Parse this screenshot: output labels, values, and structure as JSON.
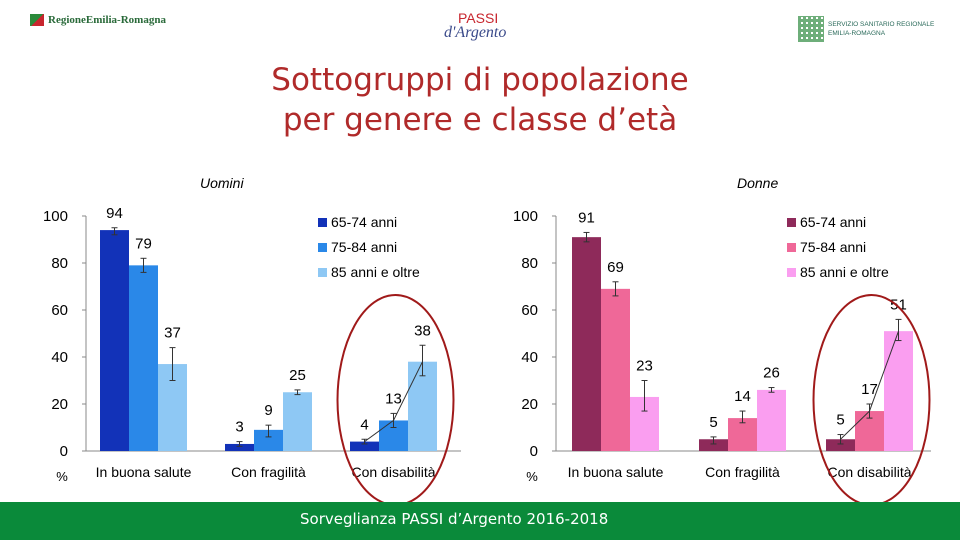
{
  "header": {
    "left_logo": "RegioneEmilia-Romagna",
    "center_logo_line1": "PASSI",
    "center_logo_line2": "d'Argento",
    "right_logo_line1": "SERVIZIO SANITARIO REGIONALE",
    "right_logo_line2": "EMILIA-ROMAGNA"
  },
  "title_line1": "Sottogruppi di popolazione",
  "title_line2": "per genere e classe d’età",
  "footer": "Sorveglianza PASSI d’Argento 2016-2018",
  "chart_data": [
    {
      "type": "bar",
      "title": "Uomini",
      "categories": [
        "In buona salute",
        "Con fragilità",
        "Con disabilità"
      ],
      "series": [
        {
          "name": "65-74 anni",
          "color": "#1232b8",
          "values": [
            94,
            3,
            4
          ],
          "ci": [
            [
              92,
              95
            ],
            [
              2,
              4
            ],
            [
              3,
              5
            ]
          ]
        },
        {
          "name": "75-84 anni",
          "color": "#2a88e8",
          "values": [
            79,
            9,
            13
          ],
          "ci": [
            [
              76,
              82
            ],
            [
              6,
              11
            ],
            [
              10,
              16
            ]
          ]
        },
        {
          "name": "85 anni e oltre",
          "color": "#8ec8f4",
          "values": [
            37,
            25,
            38
          ],
          "ci": [
            [
              30,
              44
            ],
            [
              24,
              26
            ],
            [
              32,
              45
            ]
          ]
        }
      ],
      "ylim": [
        0,
        100
      ],
      "yticks": [
        0,
        20,
        40,
        60,
        80,
        100
      ],
      "ylabel": "%",
      "legend": "top-right",
      "grid": false
    },
    {
      "type": "bar",
      "title": "Donne",
      "categories": [
        "In buona salute",
        "Con fragilità",
        "Con disabilità"
      ],
      "series": [
        {
          "name": "65-74 anni",
          "color": "#8e2a5a",
          "values": [
            91,
            5,
            5
          ],
          "ci": [
            [
              89,
              93
            ],
            [
              3,
              6
            ],
            [
              3,
              7
            ]
          ]
        },
        {
          "name": "75-84 anni",
          "color": "#ef6898",
          "values": [
            69,
            14,
            17
          ],
          "ci": [
            [
              66,
              72
            ],
            [
              12,
              17
            ],
            [
              14,
              20
            ]
          ]
        },
        {
          "name": "85 anni e oltre",
          "color": "#fa9ef0",
          "values": [
            23,
            26,
            51
          ],
          "ci": [
            [
              17,
              30
            ],
            [
              25,
              27
            ],
            [
              47,
              56
            ]
          ]
        }
      ],
      "ylim": [
        0,
        100
      ],
      "yticks": [
        0,
        20,
        40,
        60,
        80,
        100
      ],
      "ylabel": "%",
      "legend": "top-right",
      "grid": false
    }
  ]
}
